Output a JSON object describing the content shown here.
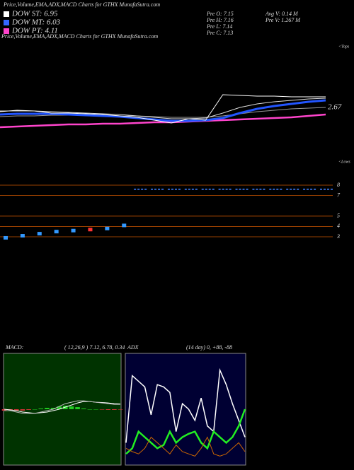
{
  "chart_data": [
    {
      "type": "line",
      "title": "Price,Volume,EMA,ADX,MACD Charts for GTHX MunafaSutra.com",
      "legend": [
        {
          "label": "DOW ST: 6.95",
          "color": "#ffffff"
        },
        {
          "label": "DOW MT: 6.03",
          "color": "#3366ff"
        },
        {
          "label": "DOW PT: 4.11",
          "color": "#ff44cc"
        }
      ],
      "info": [
        "Pre  O: 7.15",
        "Pre  H: 7.16",
        "Pre  L: 7.14",
        "Pre  C: 7.13",
        "Avg V: 0.14  M",
        "Pre  V: 1.267 M"
      ],
      "annotations": [
        "<Tops",
        "2.67",
        "<Lows"
      ],
      "x": [
        0,
        1,
        2,
        3,
        4,
        5,
        6,
        7,
        8,
        9,
        10,
        11,
        12,
        13,
        14,
        15,
        16,
        17,
        18,
        19
      ],
      "xlim": [
        0,
        19
      ],
      "ylim": [
        -5,
        15
      ],
      "series": [
        {
          "color": "#ff44cc",
          "width": 2.5,
          "values": [
            3.0,
            3.1,
            3.2,
            3.3,
            3.4,
            3.4,
            3.5,
            3.5,
            3.6,
            3.7,
            3.7,
            3.8,
            3.9,
            4.0,
            4.1,
            4.2,
            4.3,
            4.4,
            4.6,
            4.8
          ]
        },
        {
          "color": "#999999",
          "width": 1,
          "values": [
            4.5,
            4.6,
            4.6,
            4.7,
            4.7,
            4.7,
            4.7,
            4.6,
            4.6,
            4.5,
            4.4,
            4.4,
            4.4,
            4.6,
            4.9,
            5.2,
            5.4,
            5.6,
            5.7,
            5.8
          ]
        },
        {
          "color": "#dddddd",
          "width": 1,
          "values": [
            5.3,
            5.3,
            5.3,
            5.2,
            5.1,
            5.0,
            4.9,
            4.8,
            4.6,
            4.4,
            4.2,
            4.2,
            4.3,
            5.0,
            5.8,
            6.3,
            6.6,
            6.8,
            7.0,
            7.1
          ]
        },
        {
          "color": "#2255ff",
          "width": 3,
          "values": [
            4.8,
            4.9,
            4.9,
            4.9,
            4.8,
            4.7,
            4.6,
            4.5,
            4.3,
            4.1,
            3.9,
            3.9,
            4.0,
            4.3,
            5.0,
            5.6,
            6.0,
            6.3,
            6.6,
            6.8
          ]
        },
        {
          "color": "#ffffff",
          "width": 1,
          "values": [
            5.2,
            5.4,
            5.3,
            5.0,
            5.0,
            4.9,
            4.8,
            4.6,
            4.4,
            4.0,
            3.6,
            4.2,
            4.0,
            7.6,
            7.5,
            7.4,
            7.4,
            7.3,
            7.3,
            7.3
          ]
        }
      ]
    },
    {
      "type": "scatter",
      "x": [
        0,
        1,
        2,
        3,
        4,
        5,
        6,
        7,
        8,
        9,
        10,
        11,
        12,
        13,
        14,
        15,
        16,
        17,
        18,
        19
      ],
      "xlim": [
        0,
        19
      ],
      "ylim": [
        2,
        9
      ],
      "yticks": [
        8,
        7,
        5,
        4,
        3
      ],
      "grid": true,
      "series": [
        {
          "color": "#3399ff",
          "marker": "box",
          "values": [
            2.9,
            3.1,
            3.3,
            3.5,
            3.6,
            null,
            3.8,
            4.1,
            null,
            null,
            null,
            null,
            null,
            null,
            null,
            null,
            null,
            null,
            null,
            null
          ]
        },
        {
          "color": "#ff3333",
          "marker": "box",
          "values": [
            null,
            null,
            null,
            null,
            null,
            3.7,
            null,
            null,
            null,
            null,
            null,
            null,
            null,
            null,
            null,
            null,
            null,
            null,
            null,
            null
          ]
        },
        {
          "color": "#3366cc",
          "marker": "dash",
          "values": [
            null,
            null,
            null,
            null,
            null,
            null,
            null,
            null,
            7.6,
            7.6,
            7.6,
            7.6,
            7.6,
            7.6,
            7.6,
            7.6,
            7.6,
            7.6,
            7.6,
            7.6
          ]
        }
      ]
    },
    {
      "type": "line",
      "title": "MACD:",
      "subtitle": "( 12,26,9 ) 7.12, 6.78, 0.34",
      "background": "#003300",
      "x": [
        0,
        1,
        2,
        3,
        4,
        5,
        6,
        7,
        8,
        9,
        10,
        11,
        12,
        13,
        14,
        15,
        16,
        17,
        18,
        19
      ],
      "xlim": [
        0,
        19
      ],
      "ylim": [
        -4,
        4
      ],
      "series": [
        {
          "color": "#22cc22",
          "style": "bar",
          "values": [
            -0.1,
            -0.05,
            -0.1,
            -0.1,
            -0.05,
            0,
            0.05,
            0.1,
            0.1,
            0.2,
            0.25,
            0.2,
            0.15,
            0.05,
            0,
            0,
            -0.03,
            -0.05,
            -0.05,
            -0.03
          ]
        },
        {
          "color": "#ffffff",
          "width": 1,
          "values": [
            0,
            -0.05,
            -0.1,
            -0.2,
            -0.25,
            -0.3,
            -0.25,
            -0.2,
            -0.1,
            0,
            0.15,
            0.3,
            0.45,
            0.55,
            0.55,
            0.5,
            0.48,
            0.45,
            0.4,
            0.38
          ]
        },
        {
          "color": "#bbbbbb",
          "width": 1,
          "values": [
            -0.1,
            -0.1,
            -0.2,
            -0.3,
            -0.3,
            -0.3,
            -0.2,
            -0.1,
            0,
            0.2,
            0.4,
            0.5,
            0.6,
            0.6,
            0.55,
            0.5,
            0.45,
            0.4,
            0.35,
            0.35
          ]
        }
      ]
    },
    {
      "type": "line",
      "title": "ADX",
      "subtitle": "(14  day) 0, +88, -88",
      "background": "#000033",
      "x": [
        0,
        1,
        2,
        3,
        4,
        5,
        6,
        7,
        8,
        9,
        10,
        11,
        12,
        13,
        14,
        15,
        16,
        17,
        18,
        19
      ],
      "xlim": [
        0,
        19
      ],
      "ylim": [
        0,
        100
      ],
      "series": [
        {
          "color": "#ffffff",
          "width": 1.5,
          "values": [
            20,
            80,
            75,
            70,
            45,
            72,
            70,
            65,
            30,
            55,
            50,
            40,
            60,
            35,
            30,
            85,
            72,
            55,
            40,
            25
          ]
        },
        {
          "color": "#22ee22",
          "width": 2.5,
          "values": [
            10,
            15,
            30,
            25,
            20,
            15,
            18,
            30,
            20,
            25,
            28,
            30,
            20,
            15,
            30,
            25,
            20,
            25,
            35,
            50
          ]
        },
        {
          "color": "#cc6600",
          "width": 1,
          "values": [
            15,
            12,
            10,
            15,
            25,
            20,
            15,
            10,
            18,
            12,
            10,
            8,
            15,
            25,
            10,
            8,
            10,
            15,
            20,
            12
          ]
        }
      ]
    }
  ]
}
